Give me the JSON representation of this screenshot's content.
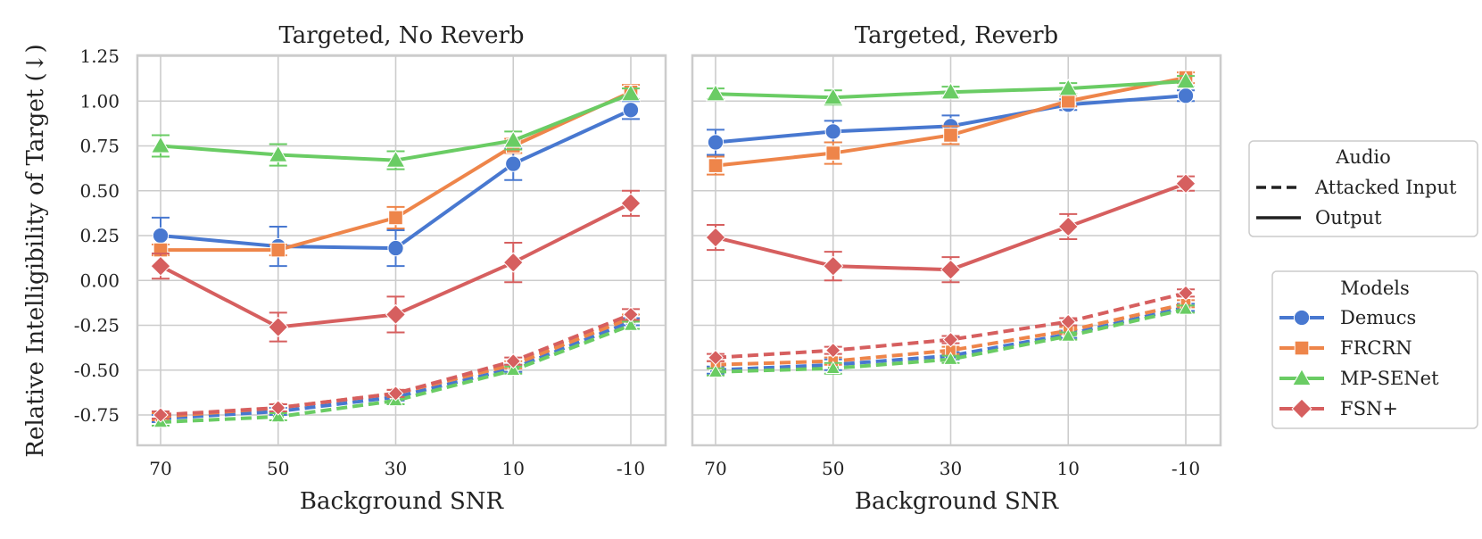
{
  "chart_data": {
    "type": "line",
    "ylabel": "Relative Intelligibility of Target (↓)",
    "xlabel": "Background SNR",
    "x_categories": [
      "70",
      "50",
      "30",
      "10",
      "-10"
    ],
    "y_ticks": [
      1.25,
      1.0,
      0.75,
      0.5,
      0.25,
      0.0,
      -0.25,
      -0.5,
      -0.75
    ],
    "y_tick_labels": [
      "1.25",
      "1.00",
      "0.75",
      "0.50",
      "0.25",
      "0.00",
      "-0.25",
      "-0.50",
      "-0.75"
    ],
    "ylim": [
      -0.9,
      1.25
    ],
    "grid": true,
    "models": [
      {
        "name": "Demucs",
        "color": "#4878d0",
        "marker": "circle"
      },
      {
        "name": "FRCRN",
        "color": "#ee854a",
        "marker": "square"
      },
      {
        "name": "MP-SENet",
        "color": "#6acc64",
        "marker": "triangle"
      },
      {
        "name": "FSN+",
        "color": "#d65f5f",
        "marker": "diamond"
      }
    ],
    "panels": [
      {
        "title": "Targeted, No Reverb",
        "series": [
          {
            "model": "Demucs",
            "style": "output",
            "values": [
              0.25,
              0.19,
              0.18,
              0.65,
              0.95
            ],
            "errors": [
              0.1,
              0.11,
              0.1,
              0.09,
              0.05
            ]
          },
          {
            "model": "FRCRN",
            "style": "output",
            "values": [
              0.17,
              0.17,
              0.35,
              0.75,
              1.05
            ],
            "errors": [
              0.03,
              0.03,
              0.06,
              0.04,
              0.04
            ]
          },
          {
            "model": "MP-SENet",
            "style": "output",
            "values": [
              0.75,
              0.7,
              0.67,
              0.78,
              1.04
            ],
            "errors": [
              0.06,
              0.06,
              0.05,
              0.05,
              0.03
            ]
          },
          {
            "model": "FSN+",
            "style": "output",
            "values": [
              0.08,
              -0.26,
              -0.19,
              0.1,
              0.43
            ],
            "errors": [
              0.07,
              0.08,
              0.1,
              0.11,
              0.07
            ]
          },
          {
            "model": "Demucs",
            "style": "attacked",
            "values": [
              -0.77,
              -0.73,
              -0.65,
              -0.49,
              -0.23
            ],
            "errors": [
              0.02,
              0.02,
              0.02,
              0.02,
              0.02
            ]
          },
          {
            "model": "FRCRN",
            "style": "attacked",
            "values": [
              -0.76,
              -0.71,
              -0.63,
              -0.47,
              -0.21
            ],
            "errors": [
              0.02,
              0.02,
              0.02,
              0.02,
              0.02
            ]
          },
          {
            "model": "MP-SENet",
            "style": "attacked",
            "values": [
              -0.79,
              -0.76,
              -0.67,
              -0.5,
              -0.25
            ],
            "errors": [
              0.02,
              0.02,
              0.02,
              0.02,
              0.02
            ]
          },
          {
            "model": "FSN+",
            "style": "attacked",
            "values": [
              -0.75,
              -0.71,
              -0.63,
              -0.45,
              -0.19
            ],
            "errors": [
              0.02,
              0.02,
              0.02,
              0.02,
              0.03
            ]
          }
        ]
      },
      {
        "title": "Targeted, Reverb",
        "series": [
          {
            "model": "Demucs",
            "style": "output",
            "values": [
              0.77,
              0.83,
              0.86,
              0.98,
              1.03
            ],
            "errors": [
              0.07,
              0.06,
              0.06,
              0.03,
              0.03
            ]
          },
          {
            "model": "FRCRN",
            "style": "output",
            "values": [
              0.64,
              0.71,
              0.81,
              1.0,
              1.13
            ],
            "errors": [
              0.05,
              0.06,
              0.05,
              0.03,
              0.03
            ]
          },
          {
            "model": "MP-SENet",
            "style": "output",
            "values": [
              1.04,
              1.02,
              1.05,
              1.07,
              1.11
            ],
            "errors": [
              0.03,
              0.04,
              0.03,
              0.03,
              0.03
            ]
          },
          {
            "model": "FSN+",
            "style": "output",
            "values": [
              0.24,
              0.08,
              0.06,
              0.3,
              0.54
            ],
            "errors": [
              0.07,
              0.08,
              0.07,
              0.07,
              0.04
            ]
          },
          {
            "model": "Demucs",
            "style": "attacked",
            "values": [
              -0.5,
              -0.47,
              -0.42,
              -0.3,
              -0.15
            ],
            "errors": [
              0.02,
              0.03,
              0.02,
              0.02,
              0.02
            ]
          },
          {
            "model": "FRCRN",
            "style": "attacked",
            "values": [
              -0.47,
              -0.45,
              -0.39,
              -0.28,
              -0.13
            ],
            "errors": [
              0.02,
              0.02,
              0.02,
              0.02,
              0.02
            ]
          },
          {
            "model": "MP-SENet",
            "style": "attacked",
            "values": [
              -0.51,
              -0.49,
              -0.44,
              -0.31,
              -0.16
            ],
            "errors": [
              0.02,
              0.03,
              0.02,
              0.02,
              0.02
            ]
          },
          {
            "model": "FSN+",
            "style": "attacked",
            "values": [
              -0.43,
              -0.39,
              -0.33,
              -0.23,
              -0.07
            ],
            "errors": [
              0.02,
              0.02,
              0.02,
              0.02,
              0.02
            ]
          }
        ]
      }
    ],
    "legend_audio": {
      "title": "Audio",
      "attacked_label": "Attacked Input",
      "output_label": "Output"
    },
    "legend_models_title": "Models",
    "legend_placement": "right"
  }
}
